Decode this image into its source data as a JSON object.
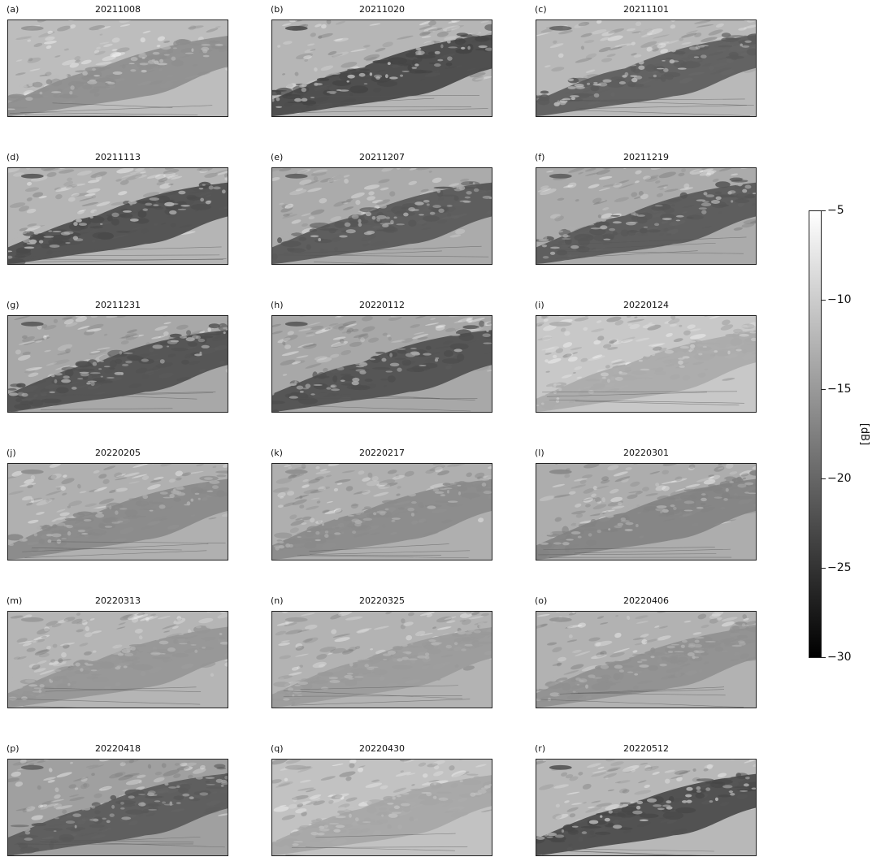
{
  "figure": {
    "panels": [
      {
        "letter": "(a)",
        "date": "20211008",
        "water_gray": "#8d8d8d",
        "land_gray": "#bdbdbd",
        "water_extent": 0.55
      },
      {
        "letter": "(b)",
        "date": "20211020",
        "water_gray": "#444444",
        "land_gray": "#b6b6b6",
        "water_extent": 0.7
      },
      {
        "letter": "(c)",
        "date": "20211101",
        "water_gray": "#5a5a5a",
        "land_gray": "#b9b9b9",
        "water_extent": 0.65
      },
      {
        "letter": "(d)",
        "date": "20211113",
        "water_gray": "#4a4a4a",
        "land_gray": "#b5b5b5",
        "water_extent": 0.7
      },
      {
        "letter": "(e)",
        "date": "20211207",
        "water_gray": "#555555",
        "land_gray": "#ababab",
        "water_extent": 0.7
      },
      {
        "letter": "(f)",
        "date": "20211219",
        "water_gray": "#555555",
        "land_gray": "#ababab",
        "water_extent": 0.7
      },
      {
        "letter": "(g)",
        "date": "20211231",
        "water_gray": "#4d4d4d",
        "land_gray": "#a8a8a8",
        "water_extent": 0.75
      },
      {
        "letter": "(h)",
        "date": "20220112",
        "water_gray": "#4d4d4d",
        "land_gray": "#a8a8a8",
        "water_extent": 0.75
      },
      {
        "letter": "(i)",
        "date": "20220124",
        "water_gray": "#aaaaaa",
        "land_gray": "#c8c8c8",
        "water_extent": 0.55
      },
      {
        "letter": "(j)",
        "date": "20220205",
        "water_gray": "#888888",
        "land_gray": "#b0b0b0",
        "water_extent": 0.6
      },
      {
        "letter": "(k)",
        "date": "20220217",
        "water_gray": "#8a8a8a",
        "land_gray": "#afafaf",
        "water_extent": 0.6
      },
      {
        "letter": "(l)",
        "date": "20220301",
        "water_gray": "#828282",
        "land_gray": "#adadad",
        "water_extent": 0.6
      },
      {
        "letter": "(m)",
        "date": "20220313",
        "water_gray": "#959595",
        "land_gray": "#b5b5b5",
        "water_extent": 0.6
      },
      {
        "letter": "(n)",
        "date": "20220325",
        "water_gray": "#9a9a9a",
        "land_gray": "#b3b3b3",
        "water_extent": 0.55
      },
      {
        "letter": "(o)",
        "date": "20220406",
        "water_gray": "#8f8f8f",
        "land_gray": "#b2b2b2",
        "water_extent": 0.6
      },
      {
        "letter": "(p)",
        "date": "20220418",
        "water_gray": "#585858",
        "land_gray": "#a0a0a0",
        "water_extent": 0.75
      },
      {
        "letter": "(q)",
        "date": "20220430",
        "water_gray": "#a6a6a6",
        "land_gray": "#c2c2c2",
        "water_extent": 0.55
      },
      {
        "letter": "(r)",
        "date": "20220512",
        "water_gray": "#474747",
        "land_gray": "#b8b8b8",
        "water_extent": 0.7
      }
    ],
    "colorbar": {
      "unit": "[dB]",
      "min": -30,
      "max": -5,
      "ticks": [
        "−5",
        "−10",
        "−15",
        "−20",
        "−25",
        "−30"
      ],
      "tick_values": [
        -5,
        -10,
        -15,
        -20,
        -25,
        -30
      ],
      "colormap": "gray"
    }
  }
}
